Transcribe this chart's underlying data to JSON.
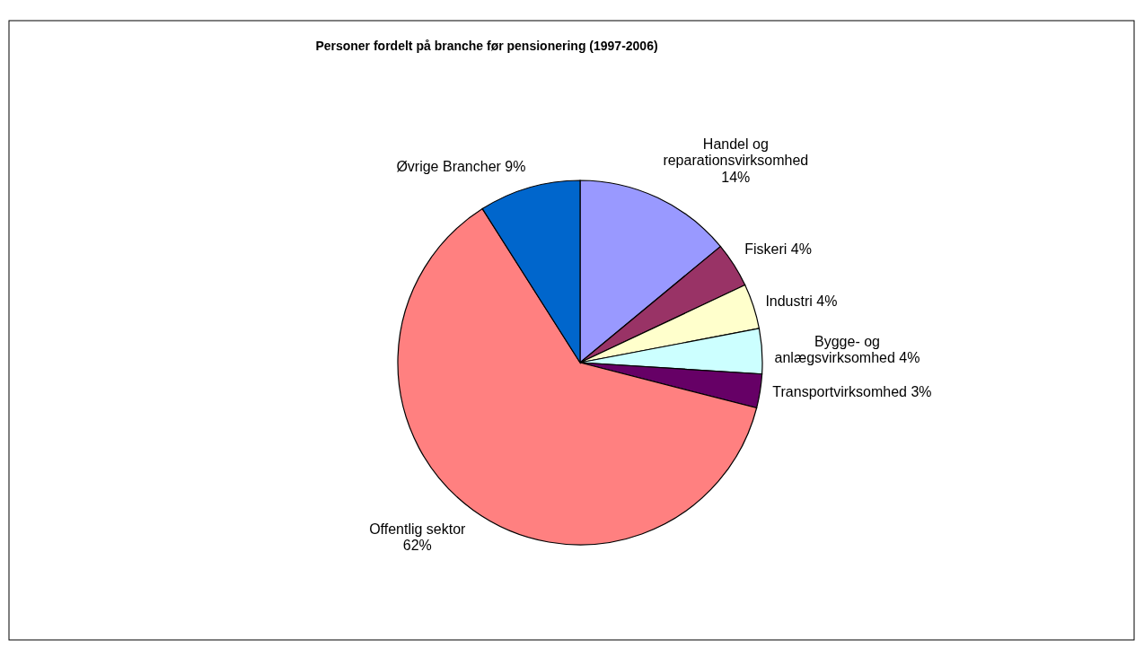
{
  "chart_data": {
    "type": "pie",
    "title": "Personer fordelt på branche før pensionering (1997-2006)",
    "categories": [
      "Handel og reparationsvirksomhed",
      "Fiskeri",
      "Industri",
      "Bygge- og anlægsvirksomhed",
      "Transportvirksomhed",
      "Offentlig sektor",
      "Øvrige Brancher"
    ],
    "values": [
      14,
      4,
      4,
      4,
      3,
      62,
      9
    ],
    "value_labels": [
      "14%",
      "4%",
      "4%",
      "4%",
      "3%",
      "62%",
      "9%"
    ],
    "colors": [
      "#9999ff",
      "#993366",
      "#ffffcc",
      "#ccffff",
      "#660066",
      "#ff8080",
      "#0066cc"
    ]
  }
}
